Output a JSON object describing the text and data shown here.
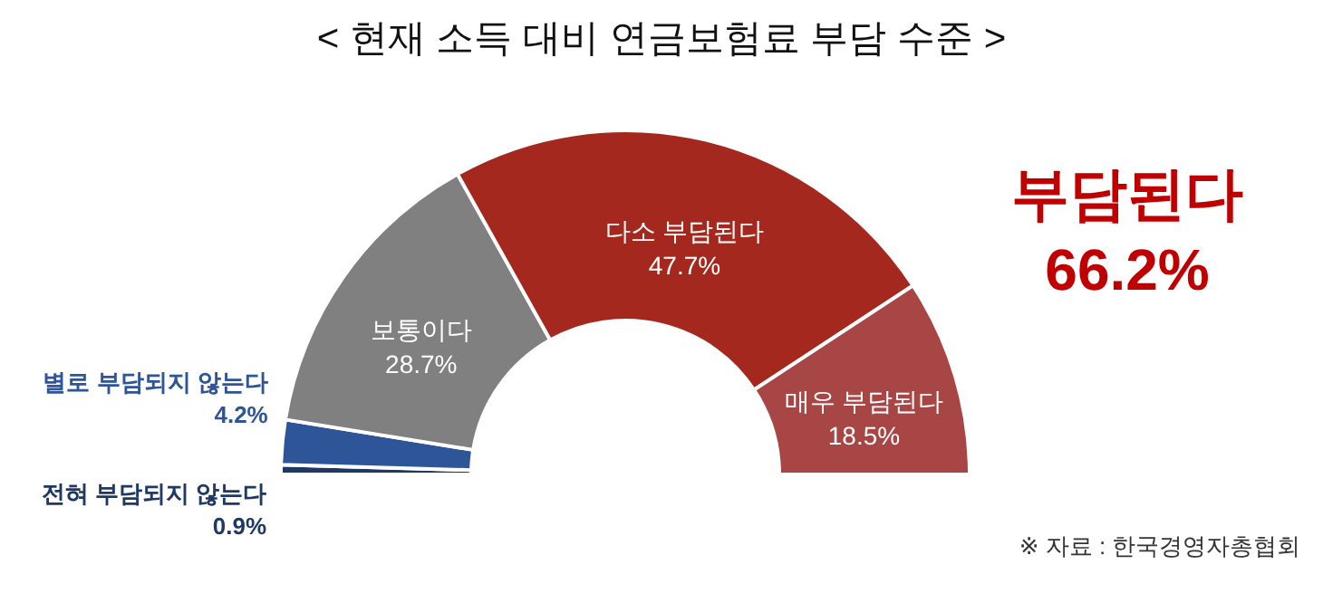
{
  "chart_data": {
    "type": "donut",
    "title": "< 현재 소득 대비 연금보험료 부담 수준 >",
    "categories": [
      "전혀 부담되지 않는다",
      "별로 부담되지 않는다",
      "보통이다",
      "다소 부담된다",
      "매우 부담된다"
    ],
    "values": [
      0.9,
      4.2,
      28.7,
      47.7,
      18.5
    ],
    "value_labels": [
      "0.9%",
      "4.2%",
      "28.7%",
      "47.7%",
      "18.5%"
    ],
    "colors": [
      "#1f3864",
      "#2e5597",
      "#808080",
      "#a5281f",
      "#a84545"
    ],
    "annotations": [
      "부담된다",
      "66.2%",
      "※ 자료 : 한국경영자총협회"
    ]
  }
}
